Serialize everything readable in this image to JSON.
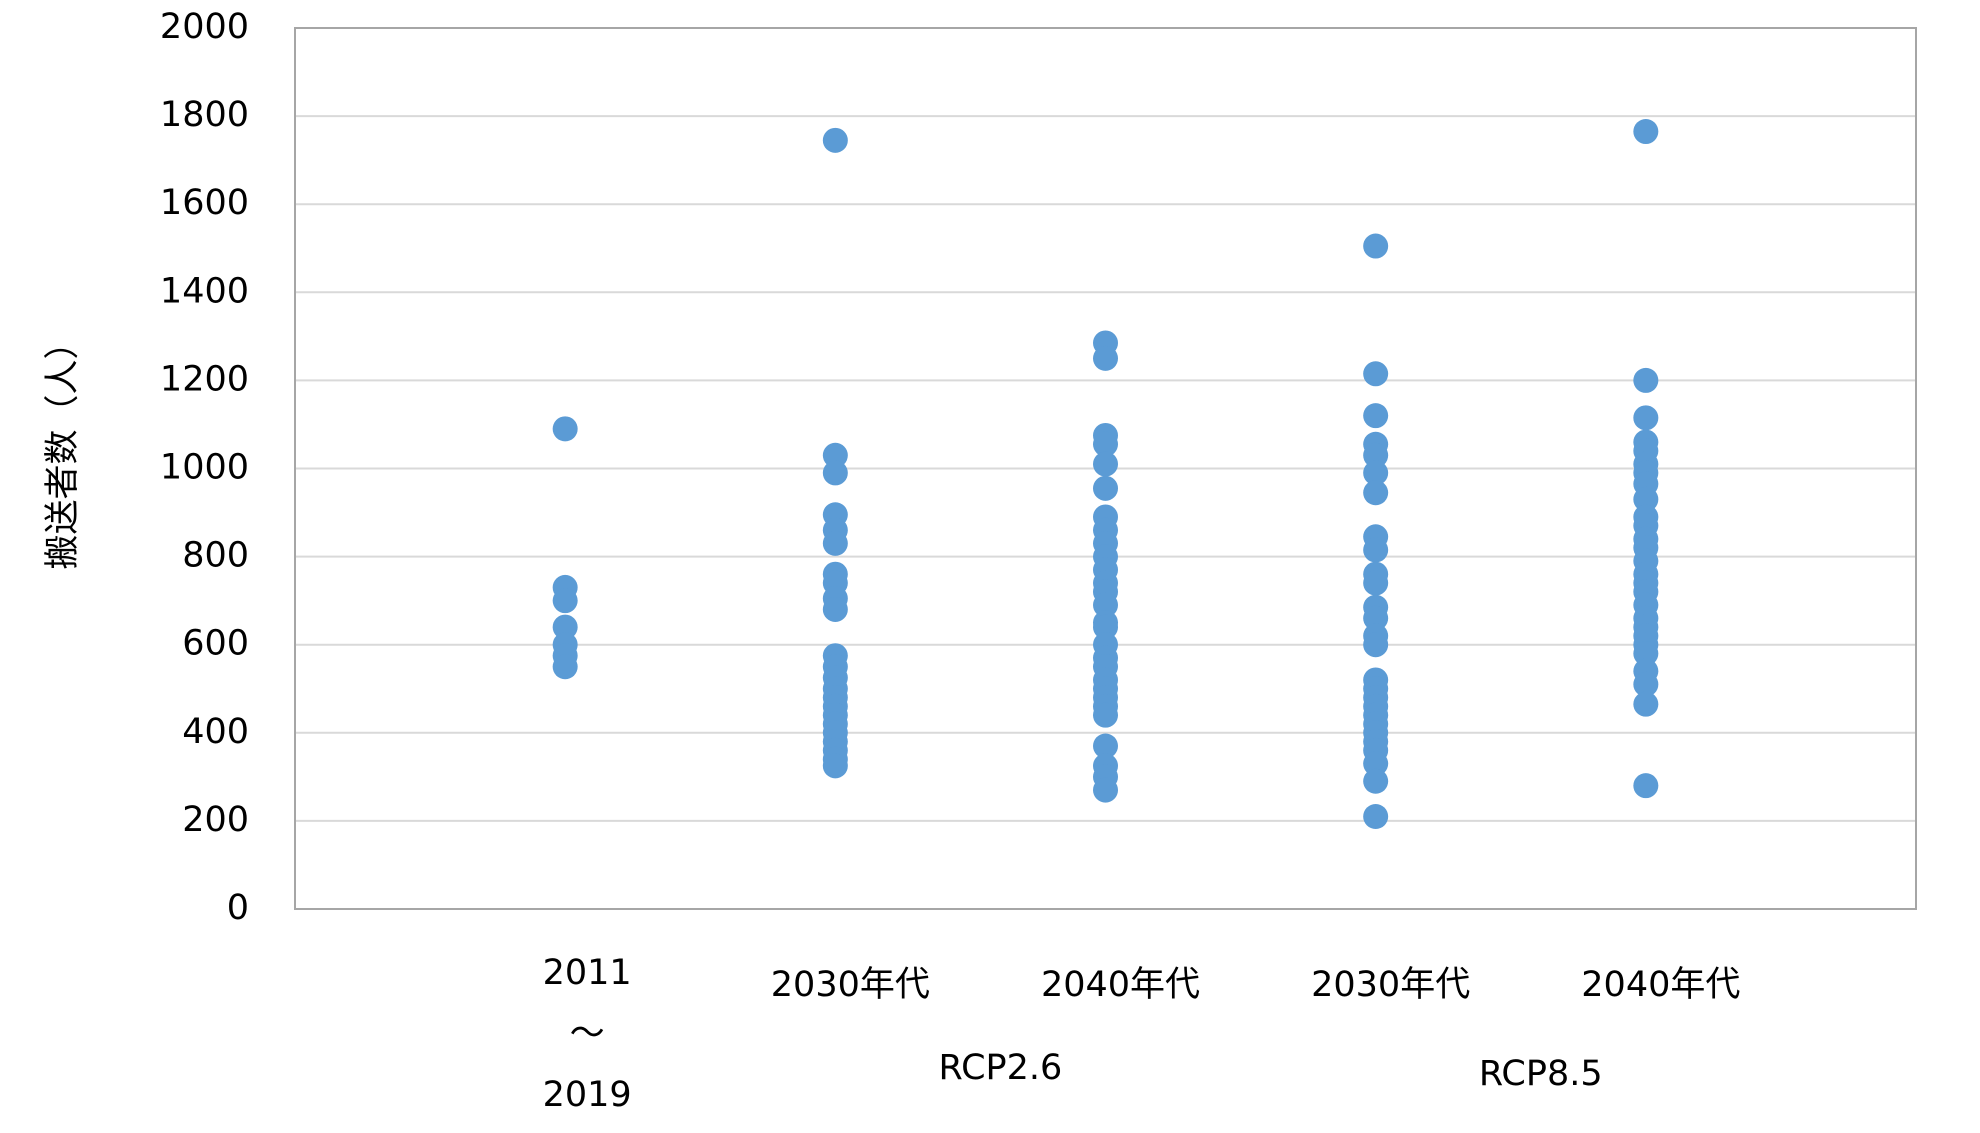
{
  "chart_data": {
    "type": "scatter",
    "y_label": "搬送者数（人）",
    "categories": [
      [
        "2011",
        "～",
        "2019"
      ],
      [
        "2030年代"
      ],
      [
        "2040年代"
      ],
      [
        "2030年代"
      ],
      [
        "2040年代"
      ]
    ],
    "groups": [
      "RCP2.6",
      "RCP8.5"
    ],
    "color": "#5b9bd5",
    "values": [
      [
        1090,
        730,
        700,
        640,
        600,
        575,
        550
      ],
      [
        1745,
        1030,
        990,
        895,
        860,
        830,
        760,
        740,
        705,
        680,
        575,
        550,
        525,
        500,
        480,
        460,
        440,
        420,
        400,
        380,
        360,
        340,
        325
      ],
      [
        1285,
        1250,
        1075,
        1055,
        1010,
        955,
        890,
        860,
        830,
        800,
        770,
        740,
        720,
        690,
        650,
        640,
        600,
        570,
        550,
        520,
        500,
        480,
        460,
        440,
        370,
        325,
        300,
        270
      ],
      [
        1505,
        1215,
        1120,
        1055,
        1030,
        990,
        945,
        845,
        815,
        760,
        740,
        685,
        660,
        620,
        600,
        520,
        500,
        480,
        460,
        440,
        420,
        400,
        380,
        360,
        330,
        290,
        210
      ],
      [
        1765,
        1200,
        1115,
        1060,
        1040,
        1010,
        990,
        965,
        930,
        890,
        870,
        840,
        820,
        790,
        760,
        740,
        720,
        690,
        660,
        640,
        620,
        600,
        580,
        540,
        510,
        465,
        280
      ]
    ],
    "ylim": [
      0,
      2000
    ],
    "yticks": [
      0,
      200,
      400,
      600,
      800,
      1000,
      1200,
      1400,
      1600,
      1800,
      2000
    ],
    "grid": true
  }
}
